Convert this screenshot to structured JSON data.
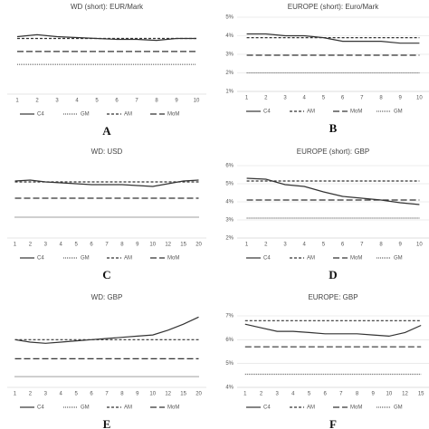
{
  "chart_data": [
    {
      "type": "line",
      "title": "WD (short): EUR/Mark",
      "label": "A",
      "categories": [
        "1",
        "2",
        "3",
        "4",
        "5",
        "6",
        "7",
        "8",
        "9",
        "10"
      ],
      "ylim": [
        1,
        5
      ],
      "grid": false,
      "series": [
        {
          "name": "C4",
          "color": "#333333",
          "dash": "solid",
          "values": [
            4.1,
            4.2,
            4.1,
            4.05,
            4.0,
            3.95,
            3.95,
            3.9,
            4.0,
            4.0
          ]
        },
        {
          "name": "GM",
          "color": "#666666",
          "dash": "dotted",
          "values": [
            2.6,
            2.6,
            2.6,
            2.6,
            2.6,
            2.6,
            2.6,
            2.6,
            2.6,
            2.6
          ]
        },
        {
          "name": "AM",
          "color": "#333333",
          "dash": "short",
          "values": [
            4.0,
            4.0,
            4.0,
            4.0,
            4.0,
            4.0,
            4.0,
            4.0,
            4.0,
            4.0
          ]
        },
        {
          "name": "MoM",
          "color": "#333333",
          "dash": "long",
          "values": [
            3.3,
            3.3,
            3.3,
            3.3,
            3.3,
            3.3,
            3.3,
            3.3,
            3.3,
            3.3
          ]
        }
      ]
    },
    {
      "type": "line",
      "title": "EUROPE (short): Euro/Mark",
      "label": "B",
      "categories": [
        "1",
        "2",
        "3",
        "4",
        "5",
        "6",
        "7",
        "8",
        "9",
        "10"
      ],
      "ylim": [
        1,
        5
      ],
      "grid": true,
      "yticks": [
        {
          "value": 1,
          "label": "1%"
        },
        {
          "value": 2,
          "label": "2%"
        },
        {
          "value": 3,
          "label": "3%"
        },
        {
          "value": 4,
          "label": "4%"
        },
        {
          "value": 5,
          "label": "5%"
        }
      ],
      "series": [
        {
          "name": "C4",
          "color": "#333333",
          "dash": "solid",
          "values": [
            4.1,
            4.1,
            4.0,
            4.0,
            3.9,
            3.7,
            3.7,
            3.7,
            3.6,
            3.6
          ]
        },
        {
          "name": "AM",
          "color": "#333333",
          "dash": "short",
          "values": [
            3.9,
            3.9,
            3.9,
            3.9,
            3.9,
            3.9,
            3.9,
            3.9,
            3.9,
            3.9
          ]
        },
        {
          "name": "MoM",
          "color": "#333333",
          "dash": "long",
          "values": [
            2.95,
            2.95,
            2.95,
            2.95,
            2.95,
            2.95,
            2.95,
            2.95,
            2.95,
            2.95
          ]
        },
        {
          "name": "GM",
          "color": "#666666",
          "dash": "dotted",
          "values": [
            2.0,
            2.0,
            2.0,
            2.0,
            2.0,
            2.0,
            2.0,
            2.0,
            2.0,
            2.0
          ]
        }
      ]
    },
    {
      "type": "line",
      "title": "WD: USD",
      "label": "C",
      "categories": [
        "1",
        "2",
        "3",
        "4",
        "5",
        "6",
        "7",
        "8",
        "9",
        "10",
        "12",
        "15",
        "20"
      ],
      "ylim": [
        2,
        6
      ],
      "grid": false,
      "series": [
        {
          "name": "C4",
          "color": "#333333",
          "dash": "solid",
          "values": [
            5.15,
            5.2,
            5.1,
            5.05,
            5.0,
            4.95,
            4.95,
            4.95,
            4.9,
            4.85,
            5.0,
            5.15,
            5.2
          ]
        },
        {
          "name": "GM",
          "color": "#666666",
          "dash": "dotted",
          "values": [
            3.15,
            3.15,
            3.15,
            3.15,
            3.15,
            3.15,
            3.15,
            3.15,
            3.15,
            3.15,
            3.15,
            3.15,
            3.15
          ]
        },
        {
          "name": "AM",
          "color": "#333333",
          "dash": "short",
          "values": [
            5.1,
            5.1,
            5.1,
            5.1,
            5.1,
            5.1,
            5.1,
            5.1,
            5.1,
            5.1,
            5.1,
            5.1,
            5.1
          ]
        },
        {
          "name": "MoM",
          "color": "#333333",
          "dash": "long",
          "values": [
            4.2,
            4.2,
            4.2,
            4.2,
            4.2,
            4.2,
            4.2,
            4.2,
            4.2,
            4.2,
            4.2,
            4.2,
            4.2
          ]
        }
      ]
    },
    {
      "type": "line",
      "title": "EUROPE (short): GBP",
      "label": "D",
      "categories": [
        "1",
        "2",
        "3",
        "4",
        "5",
        "6",
        "7",
        "8",
        "9",
        "10"
      ],
      "ylim": [
        2,
        6
      ],
      "grid": true,
      "yticks": [
        {
          "value": 2,
          "label": "2%"
        },
        {
          "value": 3,
          "label": "3%"
        },
        {
          "value": 4,
          "label": "4%"
        },
        {
          "value": 5,
          "label": "5%"
        },
        {
          "value": 6,
          "label": "6%"
        }
      ],
      "series": [
        {
          "name": "C4",
          "color": "#333333",
          "dash": "solid",
          "values": [
            5.3,
            5.25,
            4.95,
            4.85,
            4.55,
            4.3,
            4.2,
            4.1,
            3.95,
            3.85
          ]
        },
        {
          "name": "AM",
          "color": "#333333",
          "dash": "short",
          "values": [
            5.15,
            5.15,
            5.15,
            5.15,
            5.15,
            5.15,
            5.15,
            5.15,
            5.15,
            5.15
          ]
        },
        {
          "name": "MoM",
          "color": "#333333",
          "dash": "long",
          "values": [
            4.1,
            4.1,
            4.1,
            4.1,
            4.1,
            4.1,
            4.1,
            4.1,
            4.1,
            4.1
          ]
        },
        {
          "name": "GM",
          "color": "#666666",
          "dash": "dotted",
          "values": [
            3.1,
            3.1,
            3.1,
            3.1,
            3.1,
            3.1,
            3.1,
            3.1,
            3.1,
            3.1
          ]
        }
      ]
    },
    {
      "type": "line",
      "title": "WD: GBP",
      "label": "E",
      "categories": [
        "1",
        "2",
        "3",
        "4",
        "5",
        "6",
        "7",
        "8",
        "9",
        "10",
        "12",
        "15",
        "20"
      ],
      "ylim": [
        4,
        7
      ],
      "grid": false,
      "series": [
        {
          "name": "C4",
          "color": "#333333",
          "dash": "solid",
          "values": [
            6.0,
            5.9,
            5.85,
            5.9,
            5.95,
            6.0,
            6.05,
            6.1,
            6.15,
            6.2,
            6.4,
            6.65,
            6.95
          ]
        },
        {
          "name": "GM",
          "color": "#666666",
          "dash": "dotted",
          "values": [
            4.45,
            4.45,
            4.45,
            4.45,
            4.45,
            4.45,
            4.45,
            4.45,
            4.45,
            4.45,
            4.45,
            4.45,
            4.45
          ]
        },
        {
          "name": "AM",
          "color": "#333333",
          "dash": "short",
          "values": [
            6.0,
            6.0,
            6.0,
            6.0,
            6.0,
            6.0,
            6.0,
            6.0,
            6.0,
            6.0,
            6.0,
            6.0,
            6.0
          ]
        },
        {
          "name": "MoM",
          "color": "#333333",
          "dash": "long",
          "values": [
            5.2,
            5.2,
            5.2,
            5.2,
            5.2,
            5.2,
            5.2,
            5.2,
            5.2,
            5.2,
            5.2,
            5.2,
            5.2
          ]
        }
      ]
    },
    {
      "type": "line",
      "title": "EUROPE: GBP",
      "label": "F",
      "categories": [
        "1",
        "2",
        "3",
        "4",
        "5",
        "6",
        "7",
        "8",
        "9",
        "10",
        "12",
        "15"
      ],
      "ylim": [
        4,
        7
      ],
      "grid": true,
      "yticks": [
        {
          "value": 4,
          "label": "4%"
        },
        {
          "value": 5,
          "label": "5%"
        },
        {
          "value": 6,
          "label": "6%"
        },
        {
          "value": 7,
          "label": "7%"
        }
      ],
      "series": [
        {
          "name": "C4",
          "color": "#333333",
          "dash": "solid",
          "values": [
            6.65,
            6.5,
            6.35,
            6.35,
            6.3,
            6.25,
            6.25,
            6.25,
            6.2,
            6.15,
            6.3,
            6.6
          ]
        },
        {
          "name": "AM",
          "color": "#333333",
          "dash": "short",
          "values": [
            6.8,
            6.8,
            6.8,
            6.8,
            6.8,
            6.8,
            6.8,
            6.8,
            6.8,
            6.8,
            6.8,
            6.8
          ]
        },
        {
          "name": "MoM",
          "color": "#333333",
          "dash": "long",
          "values": [
            5.7,
            5.7,
            5.7,
            5.7,
            5.7,
            5.7,
            5.7,
            5.7,
            5.7,
            5.7,
            5.7,
            5.7
          ]
        },
        {
          "name": "GM",
          "color": "#666666",
          "dash": "dotted",
          "values": [
            4.55,
            4.55,
            4.55,
            4.55,
            4.55,
            4.55,
            4.55,
            4.55,
            4.55,
            4.55,
            4.55,
            4.55
          ]
        }
      ]
    }
  ]
}
